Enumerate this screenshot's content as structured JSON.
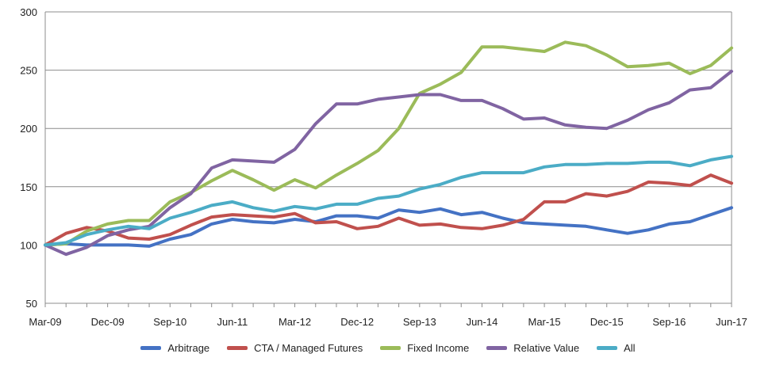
{
  "chart_data": {
    "type": "line",
    "title": "",
    "xlabel": "",
    "ylabel": "",
    "x_tick_labels": [
      "Mar-09",
      "Dec-09",
      "Sep-10",
      "Jun-11",
      "Mar-12",
      "Dec-12",
      "Sep-13",
      "Jun-14",
      "Mar-15",
      "Dec-15",
      "Sep-16",
      "Jun-17"
    ],
    "ylim": [
      50,
      300
    ],
    "y_ticks": [
      50,
      100,
      150,
      200,
      250,
      300
    ],
    "grid": "horizontal",
    "legend_position": "bottom",
    "series": [
      {
        "name": "Arbitrage",
        "color": "#4472c4",
        "values": [
          100,
          101,
          100,
          100,
          100,
          99,
          105,
          109,
          118,
          122,
          120,
          119,
          122,
          120,
          125,
          125,
          123,
          130,
          128,
          131,
          126,
          128,
          123,
          119,
          118,
          117,
          116,
          113,
          110,
          113,
          118,
          120,
          126,
          132
        ]
      },
      {
        "name": "CTA / Managed Futures",
        "color": "#c0504d",
        "values": [
          100,
          110,
          115,
          112,
          106,
          105,
          109,
          117,
          124,
          126,
          125,
          124,
          127,
          119,
          120,
          114,
          116,
          123,
          117,
          118,
          115,
          114,
          117,
          122,
          137,
          137,
          144,
          142,
          146,
          154,
          153,
          151,
          160,
          153
        ]
      },
      {
        "name": "Fixed Income",
        "color": "#9bbb59",
        "values": [
          100,
          101,
          112,
          118,
          121,
          121,
          137,
          145,
          155,
          164,
          156,
          147,
          156,
          149,
          160,
          170,
          181,
          200,
          230,
          238,
          248,
          270,
          270,
          268,
          266,
          274,
          271,
          263,
          253,
          254,
          256,
          247,
          254,
          269
        ]
      },
      {
        "name": "Relative Value",
        "color": "#8064a2",
        "values": [
          100,
          92,
          98,
          108,
          113,
          116,
          132,
          144,
          166,
          173,
          172,
          171,
          182,
          204,
          221,
          221,
          225,
          227,
          229,
          229,
          224,
          224,
          217,
          208,
          209,
          203,
          201,
          200,
          207,
          216,
          222,
          233,
          235,
          249
        ]
      },
      {
        "name": "All",
        "color": "#4bacc6",
        "values": [
          100,
          102,
          109,
          113,
          116,
          114,
          123,
          128,
          134,
          137,
          132,
          129,
          133,
          131,
          135,
          135,
          140,
          142,
          148,
          152,
          158,
          162,
          162,
          162,
          167,
          169,
          169,
          170,
          170,
          171,
          171,
          168,
          173,
          176
        ]
      }
    ]
  }
}
